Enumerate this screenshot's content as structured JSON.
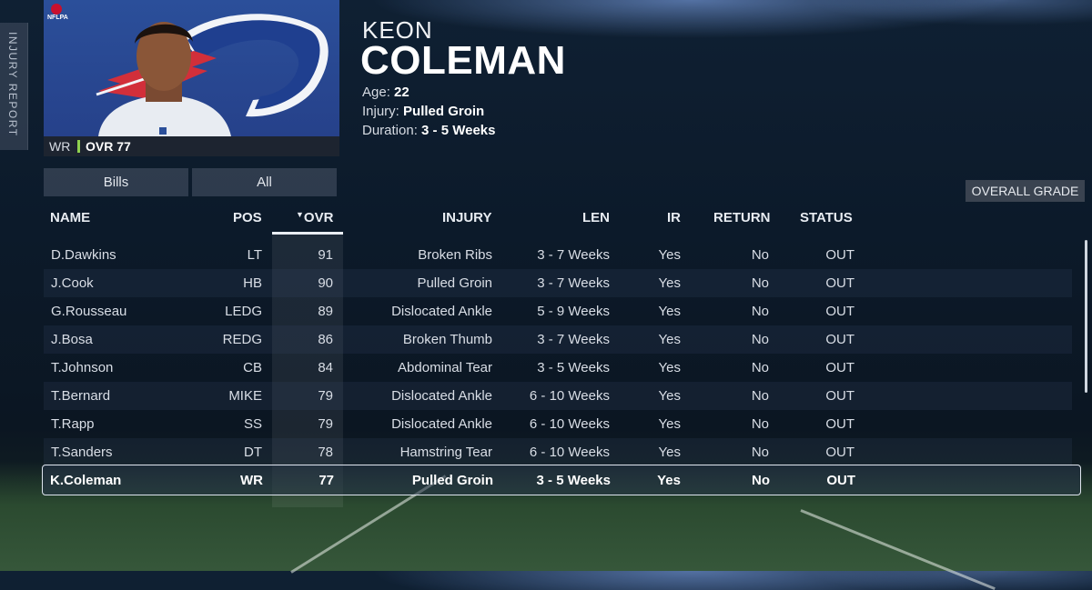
{
  "side_tab": {
    "label": "INJURY REPORT"
  },
  "player": {
    "first_name": "KEON",
    "last_name": "COLEMAN",
    "position": "WR",
    "ovr_label": "OVR 77",
    "age_label": "Age:",
    "age": "22",
    "injury_label": "Injury:",
    "injury": "Pulled Groin",
    "duration_label": "Duration:",
    "duration": "3 - 5 Weeks",
    "badge_text": "NFLPA"
  },
  "filters": {
    "team": "Bills",
    "scope": "All"
  },
  "overall_grade_button": "OVERALL GRADE",
  "table": {
    "headers": {
      "name": "NAME",
      "pos": "POS",
      "ovr": "OVR",
      "sort_marker": "▼",
      "injury": "INJURY",
      "len": "LEN",
      "ir": "IR",
      "return": "RETURN",
      "status": "STATUS"
    },
    "rows": [
      {
        "name": "D.Dawkins",
        "pos": "LT",
        "ovr": "91",
        "injury": "Broken Ribs",
        "len": "3 - 7 Weeks",
        "ir": "Yes",
        "ret": "No",
        "status": "OUT"
      },
      {
        "name": "J.Cook",
        "pos": "HB",
        "ovr": "90",
        "injury": "Pulled Groin",
        "len": "3 - 7 Weeks",
        "ir": "Yes",
        "ret": "No",
        "status": "OUT"
      },
      {
        "name": "G.Rousseau",
        "pos": "LEDG",
        "ovr": "89",
        "injury": "Dislocated Ankle",
        "len": "5 - 9 Weeks",
        "ir": "Yes",
        "ret": "No",
        "status": "OUT"
      },
      {
        "name": "J.Bosa",
        "pos": "REDG",
        "ovr": "86",
        "injury": "Broken Thumb",
        "len": "3 - 7 Weeks",
        "ir": "Yes",
        "ret": "No",
        "status": "OUT"
      },
      {
        "name": "T.Johnson",
        "pos": "CB",
        "ovr": "84",
        "injury": "Abdominal Tear",
        "len": "3 - 5 Weeks",
        "ir": "Yes",
        "ret": "No",
        "status": "OUT"
      },
      {
        "name": "T.Bernard",
        "pos": "MIKE",
        "ovr": "79",
        "injury": "Dislocated Ankle",
        "len": "6 - 10 Weeks",
        "ir": "Yes",
        "ret": "No",
        "status": "OUT"
      },
      {
        "name": "T.Rapp",
        "pos": "SS",
        "ovr": "79",
        "injury": "Dislocated Ankle",
        "len": "6 - 10 Weeks",
        "ir": "Yes",
        "ret": "No",
        "status": "OUT"
      },
      {
        "name": "T.Sanders",
        "pos": "DT",
        "ovr": "78",
        "injury": "Hamstring Tear",
        "len": "6 - 10 Weeks",
        "ir": "Yes",
        "ret": "No",
        "status": "OUT"
      },
      {
        "name": "K.Coleman",
        "pos": "WR",
        "ovr": "77",
        "injury": "Pulled Groin",
        "len": "3 - 5 Weeks",
        "ir": "Yes",
        "ret": "No",
        "status": "OUT"
      }
    ]
  },
  "colors": {
    "team_blue": "#26418a",
    "ovr_accent": "#8fd14f",
    "selection_border": "#dfe5ee"
  }
}
